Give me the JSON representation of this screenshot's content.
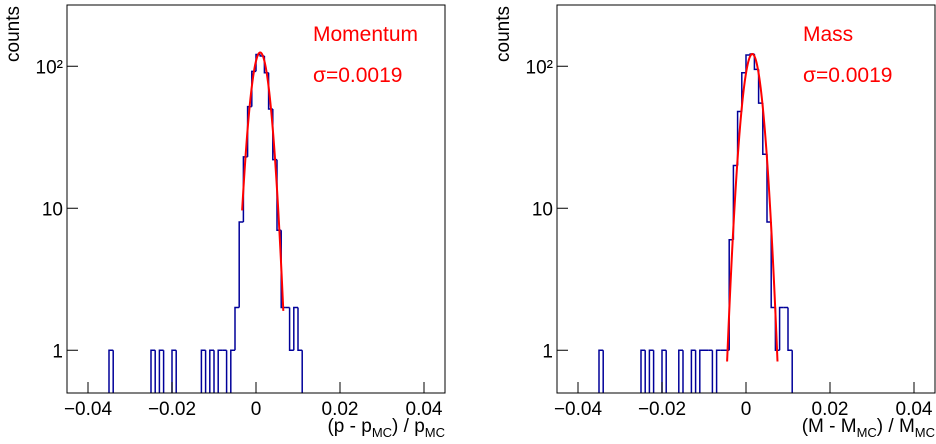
{
  "chart_data": [
    {
      "type": "histogram",
      "title": "Momentum",
      "annotation": "σ=0.0019",
      "ylabel": "counts",
      "xlabel_parts": [
        "(p - p",
        "MC",
        ") / p",
        "MC"
      ],
      "log_y": true,
      "color": "#000099",
      "fit_color": "#ff0000",
      "xlim": [
        -0.045,
        0.045
      ],
      "ylim": [
        0.5,
        270
      ],
      "xticks": [
        {
          "value": -0.04,
          "label": "−0.04"
        },
        {
          "value": -0.02,
          "label": "−0.02"
        },
        0,
        0.02,
        0.04
      ],
      "yticks": [
        1,
        10,
        {
          "value": 100,
          "label": "10²"
        }
      ],
      "bins": [
        -0.036,
        -0.035,
        -0.034,
        -0.033,
        -0.032,
        -0.031,
        -0.03,
        -0.029,
        -0.028,
        -0.027,
        -0.026,
        -0.025,
        -0.024,
        -0.023,
        -0.022,
        -0.021,
        -0.02,
        -0.019,
        -0.018,
        -0.017,
        -0.016,
        -0.015,
        -0.014,
        -0.013,
        -0.012,
        -0.011,
        -0.01,
        -0.009,
        -0.008,
        -0.007,
        -0.006,
        -0.005,
        -0.004,
        -0.003,
        -0.002,
        -0.001,
        0,
        0.001,
        0.002,
        0.003,
        0.004,
        0.005,
        0.006,
        0.007,
        0.008,
        0.009,
        0.01,
        0.011,
        0.012
      ],
      "values": [
        0,
        1,
        0,
        0,
        0,
        0,
        0,
        0,
        0,
        0,
        0,
        1,
        0,
        1,
        0,
        0,
        1,
        0,
        0,
        0,
        0,
        0,
        0,
        1,
        0,
        1,
        0,
        1,
        1,
        0,
        1,
        2,
        8,
        23,
        52,
        92,
        121,
        118,
        90,
        50,
        22,
        7,
        2,
        2,
        1,
        2,
        1,
        0
      ],
      "fit": {
        "constant": 125,
        "mean": 0.001,
        "sigma": 0.0019,
        "xrange": [
          -0.0033,
          0.0065
        ]
      }
    },
    {
      "type": "histogram",
      "title": "Mass",
      "annotation": "σ=0.0019",
      "ylabel": "counts",
      "xlabel_parts": [
        "(M - M",
        "MC",
        ") / M",
        "MC"
      ],
      "log_y": true,
      "color": "#000099",
      "fit_color": "#ff0000",
      "xlim": [
        -0.045,
        0.045
      ],
      "ylim": [
        0.5,
        270
      ],
      "xticks": [
        {
          "value": -0.04,
          "label": "−0.04"
        },
        {
          "value": -0.02,
          "label": "−0.02"
        },
        0,
        0.02,
        0.04
      ],
      "yticks": [
        1,
        10,
        {
          "value": 100,
          "label": "10²"
        }
      ],
      "bins": [
        -0.036,
        -0.035,
        -0.034,
        -0.033,
        -0.032,
        -0.031,
        -0.03,
        -0.029,
        -0.028,
        -0.027,
        -0.026,
        -0.025,
        -0.024,
        -0.023,
        -0.022,
        -0.021,
        -0.02,
        -0.019,
        -0.018,
        -0.017,
        -0.016,
        -0.015,
        -0.014,
        -0.013,
        -0.012,
        -0.011,
        -0.01,
        -0.009,
        -0.008,
        -0.007,
        -0.006,
        -0.005,
        -0.004,
        -0.003,
        -0.002,
        -0.001,
        0,
        0.001,
        0.002,
        0.003,
        0.004,
        0.005,
        0.006,
        0.007,
        0.008,
        0.009,
        0.01,
        0.011,
        0.012
      ],
      "values": [
        0,
        1,
        0,
        0,
        0,
        0,
        0,
        0,
        0,
        0,
        0,
        1,
        0,
        1,
        0,
        0,
        1,
        0,
        0,
        0,
        1,
        0,
        0,
        1,
        0,
        1,
        1,
        1,
        0,
        1,
        1,
        1,
        6,
        20,
        48,
        90,
        120,
        122,
        95,
        55,
        24,
        8,
        2,
        1,
        2,
        2,
        1,
        0
      ],
      "fit": {
        "constant": 122,
        "mean": 0.0015,
        "sigma": 0.0019,
        "xrange": [
          -0.0045,
          0.0075
        ]
      }
    }
  ]
}
